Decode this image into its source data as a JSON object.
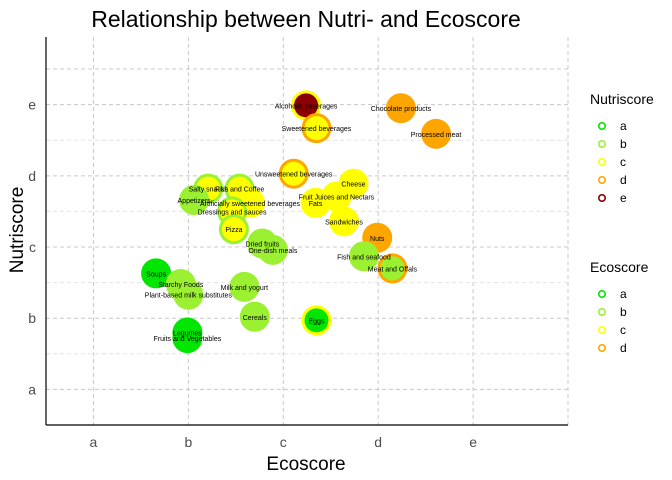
{
  "chart_data": {
    "type": "scatter",
    "title": "Relationship between Nutri- and Ecoscore",
    "xlabel": "Ecoscore",
    "ylabel": "Nutriscore",
    "x_ticks": [
      "a",
      "b",
      "c",
      "d",
      "e"
    ],
    "y_ticks": [
      "a",
      "b",
      "c",
      "d",
      "e"
    ],
    "xlim": [
      0.5,
      6.0
    ],
    "ylim": [
      0.5,
      5.95
    ],
    "grid": true,
    "score_colors": {
      "a": "#00e600",
      "b": "#9bf032",
      "c": "#ffff00",
      "d": "#ffa500",
      "e": "#8b0000"
    },
    "legends": [
      {
        "title": "Nutriscore",
        "items": [
          "a",
          "b",
          "c",
          "d",
          "e"
        ],
        "position": "right"
      },
      {
        "title": "Ecoscore",
        "items": [
          "a",
          "b",
          "c",
          "d"
        ],
        "position": "right"
      }
    ],
    "points": [
      {
        "label": "Alcoholic beverages",
        "eco": 3.24,
        "nutri": 4.99,
        "nutriscore": "e",
        "ecoscore": "c"
      },
      {
        "label": "Sweetened beverages",
        "eco": 3.35,
        "nutri": 4.67,
        "nutriscore": "c",
        "ecoscore": "d"
      },
      {
        "label": "Chocolate products",
        "eco": 4.24,
        "nutri": 4.95,
        "nutriscore": "d",
        "ecoscore": "d"
      },
      {
        "label": "Processed meat",
        "eco": 4.61,
        "nutri": 4.59,
        "nutriscore": "d",
        "ecoscore": "d"
      },
      {
        "label": "Unsweetened beverages",
        "eco": 3.11,
        "nutri": 4.03,
        "nutriscore": "c",
        "ecoscore": "d"
      },
      {
        "label": "Cheese",
        "eco": 3.74,
        "nutri": 3.89,
        "nutriscore": "c",
        "ecoscore": "c"
      },
      {
        "label": "Fruit Juices and Nectars",
        "eco": 3.56,
        "nutri": 3.71,
        "nutriscore": "c",
        "ecoscore": "c"
      },
      {
        "label": "Fats",
        "eco": 3.34,
        "nutri": 3.62,
        "nutriscore": "c",
        "ecoscore": "c"
      },
      {
        "label": "Salty snacks",
        "eco": 2.21,
        "nutri": 3.82,
        "nutriscore": "c",
        "ecoscore": "b"
      },
      {
        "label": "Fish and Coffee",
        "eco": 2.54,
        "nutri": 3.82,
        "nutriscore": "c",
        "ecoscore": "b"
      },
      {
        "label": "Appetizers",
        "eco": 2.06,
        "nutri": 3.66,
        "nutriscore": "b",
        "ecoscore": "b"
      },
      {
        "label": "Artificially sweetened beverages",
        "eco": 2.65,
        "nutri": 3.62,
        "nutriscore": "c",
        "ecoscore": "c"
      },
      {
        "label": "Dressings and sauces",
        "eco": 2.46,
        "nutri": 3.5,
        "nutriscore": "c",
        "ecoscore": "b"
      },
      {
        "label": "Sandwiches",
        "eco": 3.64,
        "nutri": 3.36,
        "nutriscore": "c",
        "ecoscore": "c"
      },
      {
        "label": "Pizza",
        "eco": 2.48,
        "nutri": 3.25,
        "nutriscore": "c",
        "ecoscore": "b"
      },
      {
        "label": "Dried fruits",
        "eco": 2.78,
        "nutri": 3.05,
        "nutriscore": "b",
        "ecoscore": "b"
      },
      {
        "label": "One-dish meals",
        "eco": 2.89,
        "nutri": 2.96,
        "nutriscore": "b",
        "ecoscore": "b"
      },
      {
        "label": "Nuts",
        "eco": 3.99,
        "nutri": 3.13,
        "nutriscore": "d",
        "ecoscore": "d"
      },
      {
        "label": "Fish and seafood",
        "eco": 3.85,
        "nutri": 2.87,
        "nutriscore": "b",
        "ecoscore": "b"
      },
      {
        "label": "Meat and Offals",
        "eco": 4.15,
        "nutri": 2.7,
        "nutriscore": "b",
        "ecoscore": "d"
      },
      {
        "label": "Soups",
        "eco": 1.66,
        "nutri": 2.63,
        "nutriscore": "a",
        "ecoscore": "a"
      },
      {
        "label": "Starchy Foods",
        "eco": 1.92,
        "nutri": 2.48,
        "nutriscore": "b",
        "ecoscore": "b"
      },
      {
        "label": "Milk and yogurt",
        "eco": 2.59,
        "nutri": 2.44,
        "nutriscore": "b",
        "ecoscore": "b"
      },
      {
        "label": "Plant-based milk substitutes",
        "eco": 2.0,
        "nutri": 2.33,
        "nutriscore": "b",
        "ecoscore": "b"
      },
      {
        "label": "Cereals",
        "eco": 2.7,
        "nutri": 2.02,
        "nutriscore": "b",
        "ecoscore": "b"
      },
      {
        "label": "Eggs",
        "eco": 3.35,
        "nutri": 1.97,
        "nutriscore": "a",
        "ecoscore": "c"
      },
      {
        "label": "Legumes",
        "eco": 1.99,
        "nutri": 1.8,
        "nutriscore": "a",
        "ecoscore": "a"
      },
      {
        "label": "Fruits and Vegetables",
        "eco": 1.99,
        "nutri": 1.72,
        "nutriscore": "a",
        "ecoscore": "a"
      }
    ]
  }
}
